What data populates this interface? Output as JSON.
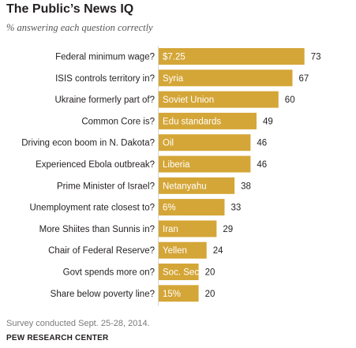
{
  "chart_data": {
    "type": "bar",
    "orientation": "horizontal",
    "title": "The Public’s News IQ",
    "subtitle": "% answering each question correctly",
    "categories": [
      "Federal minimum wage?",
      "ISIS controls territory in?",
      "Ukraine formerly part of?",
      "Common Core is?",
      "Driving econ boom in N. Dakota?",
      "Experienced Ebola outbreak?",
      "Prime Minister of Israel?",
      "Unemployment rate closest to?",
      "More Shiites than Sunnis in?",
      "Chair of Federal Reserve?",
      "Govt spends more on?",
      "Share below poverty line?"
    ],
    "answers": [
      "$7.25",
      "Syria",
      "Soviet Union",
      "Edu standards",
      "Oil",
      "Liberia",
      "Netanyahu",
      "6%",
      "Iran",
      "Yellen",
      "Soc. Sec.",
      "15%"
    ],
    "values": [
      73,
      67,
      60,
      49,
      46,
      46,
      38,
      33,
      29,
      24,
      20,
      20
    ],
    "xlim": [
      0,
      100
    ],
    "bar_color": "#d4a637",
    "grid": false,
    "legend": "none"
  },
  "footer": {
    "note": "Survey conducted Sept. 25-28, 2014.",
    "source": "PEW RESEARCH CENTER"
  }
}
